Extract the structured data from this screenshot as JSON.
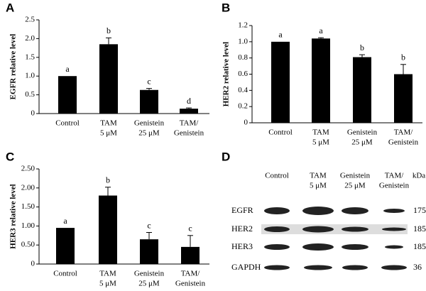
{
  "chart_data": [
    {
      "type": "bar",
      "label": "A",
      "ylabel": "EGFR relative level",
      "categories": [
        [
          "Control"
        ],
        [
          "TAM",
          "5 μM"
        ],
        [
          "Genistein",
          "25 μM"
        ],
        [
          "TAM/",
          "Genistein"
        ]
      ],
      "values": [
        1.0,
        1.85,
        0.63,
        0.13
      ],
      "errors": [
        0,
        0.17,
        0.04,
        0.02
      ],
      "annotations": [
        "a",
        "b",
        "c",
        "d"
      ],
      "color": "#000000",
      "ylim": [
        0,
        2.5
      ],
      "yticks": [
        0,
        0.5,
        {
          "value": 1,
          "label": "1.0"
        },
        1.5,
        {
          "value": 2,
          "label": "2.0"
        },
        2.5
      ]
    },
    {
      "type": "bar",
      "label": "B",
      "ylabel": "HER2 relative level",
      "categories": [
        [
          "Control"
        ],
        [
          "TAM",
          "5 μM"
        ],
        [
          "Genistein",
          "25 μM"
        ],
        [
          "TAM/",
          "Genistein"
        ]
      ],
      "values": [
        1.0,
        1.04,
        0.81,
        0.6
      ],
      "errors": [
        0,
        0.01,
        0.03,
        0.12
      ],
      "annotations": [
        "a",
        "a",
        "b",
        "b"
      ],
      "color": "#000000",
      "ylim": [
        0,
        1.2
      ],
      "yticks": [
        0,
        0.2,
        0.4,
        0.6,
        0.8,
        {
          "value": 1,
          "label": "1.0"
        },
        1.2
      ]
    },
    {
      "type": "bar",
      "label": "C",
      "ylabel": "HER3 relative level",
      "categories": [
        [
          "Control"
        ],
        [
          "TAM",
          "5 μM"
        ],
        [
          "Genistein",
          "25 μM"
        ],
        [
          "TAM/",
          "Genistein"
        ]
      ],
      "values": [
        0.95,
        1.8,
        0.65,
        0.45
      ],
      "errors": [
        0,
        0.22,
        0.18,
        0.3
      ],
      "annotations": [
        "a",
        "b",
        "c",
        "c"
      ],
      "color": "#000000",
      "ylim": [
        0,
        2.5
      ],
      "yticks": [
        0,
        {
          "value": 0.5,
          "label": "0.50"
        },
        {
          "value": 1,
          "label": "1.00"
        },
        {
          "value": 1.5,
          "label": "1.50"
        },
        {
          "value": 2,
          "label": "2.00"
        },
        {
          "value": 2.5,
          "label": "2.50"
        }
      ]
    }
  ],
  "blot": {
    "label": "D",
    "columns": [
      [
        "Control"
      ],
      [
        "TAM",
        "5 μM"
      ],
      [
        "Genistein",
        "25 μM"
      ],
      [
        "TAM/",
        "Genistein"
      ]
    ],
    "unit": "kDa",
    "rows": [
      {
        "name": "EGFR",
        "size": "175"
      },
      {
        "name": "HER2",
        "size": "185"
      },
      {
        "name": "HER3",
        "size": "185"
      },
      {
        "name": "GAPDH",
        "size": "36"
      }
    ]
  }
}
